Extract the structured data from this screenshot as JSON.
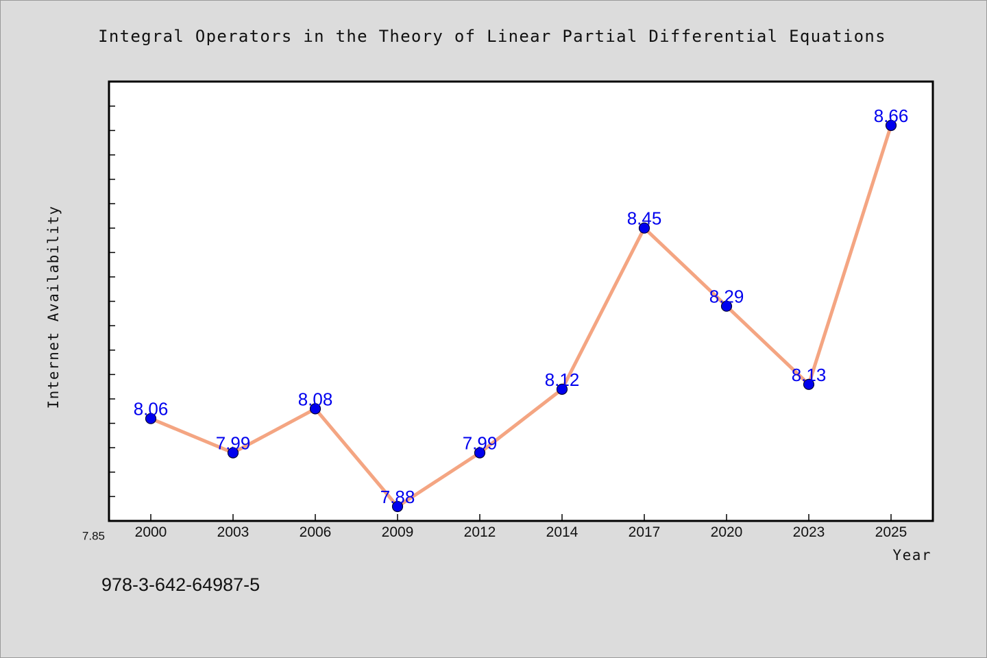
{
  "chart_data": {
    "type": "line",
    "title": "Integral Operators in the Theory of Linear Partial Differential Equations",
    "xlabel": "Year",
    "ylabel": "Internet Availability",
    "categories": [
      "2000",
      "2003",
      "2006",
      "2009",
      "2012",
      "2014",
      "2017",
      "2020",
      "2023",
      "2025"
    ],
    "values": [
      8.06,
      7.99,
      8.08,
      7.88,
      7.99,
      8.12,
      8.45,
      8.29,
      8.13,
      8.66
    ],
    "data_labels": [
      "8.06",
      "7.99",
      "8.08",
      "7.88",
      "7.99",
      "8.12",
      "8.45",
      "8.29",
      "8.13",
      "8.66"
    ],
    "ylim": [
      7.85,
      8.75
    ],
    "y_tick_labels": [
      {
        "value": 7.85,
        "text": "7.85"
      }
    ],
    "grid": false,
    "legend": "none",
    "colors": {
      "line": "#f4a582",
      "marker": "#0000ee",
      "marker_edge": "#000033",
      "data_label": "#0000ee",
      "plot_background": "#ffffff",
      "figure_background": "#dcdcdc"
    }
  },
  "footer_text": "978-3-642-64987-5"
}
